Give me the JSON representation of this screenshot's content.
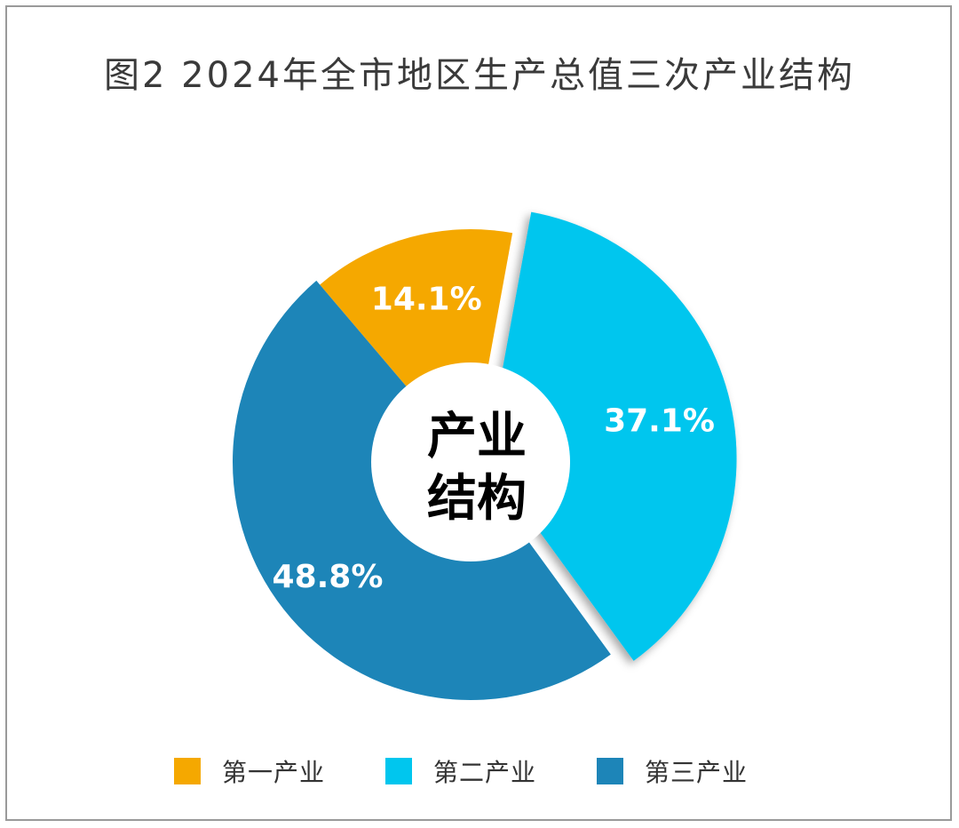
{
  "chart_data": {
    "type": "pie",
    "title": "图2 2024年全市地区生产总值三次产业结构",
    "center_label_line1": "产业",
    "center_label_line2": "结构",
    "categories": [
      "第一产业",
      "第二产业",
      "第三产业"
    ],
    "values": [
      14.1,
      37.1,
      48.8
    ],
    "value_labels": [
      "14.1%",
      "37.1%",
      "48.8%"
    ],
    "unit": "%",
    "colors": [
      "#F5A800",
      "#00C6EE",
      "#1D85B8"
    ],
    "legend_position": "bottom",
    "donut": true
  }
}
